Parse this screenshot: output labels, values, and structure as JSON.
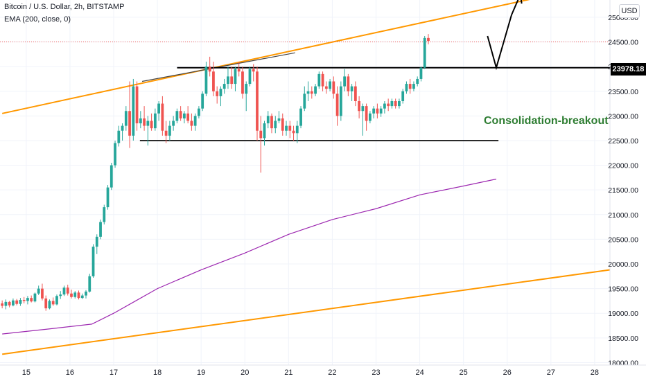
{
  "header": {
    "symbol_line": "Bitcoin / U.S. Dollar, 2h, BITSTAMP",
    "indicator_line": "EMA (200, close, 0)"
  },
  "currency_button": "USD",
  "price_tag": "23978.18",
  "annotation": "Consolidation-breakout",
  "colors": {
    "up": "#26a69a",
    "up_fill": "#26a69a",
    "down": "#ef5350",
    "ema": "#9c27b0",
    "trendline": "#ff9800",
    "level": "#000000",
    "annotation": "#2e7d32",
    "grid": "#f0f3fa"
  },
  "chart_data": {
    "type": "candlestick",
    "symbol": "Bitcoin / U.S. Dollar",
    "interval": "2h",
    "exchange": "BITSTAMP",
    "ylim": [
      17950,
      25350
    ],
    "xlim": [
      14.4,
      28.35
    ],
    "y_ticks": [
      "25000.00",
      "24500.00",
      "24000.00",
      "23500.00",
      "23000.00",
      "22500.00",
      "22000.00",
      "21500.00",
      "21000.00",
      "20500.00",
      "20000.00",
      "19500.00",
      "19000.00",
      "18500.00",
      "18000.00"
    ],
    "x_ticks": [
      "15",
      "16",
      "17",
      "18",
      "19",
      "20",
      "21",
      "22",
      "23",
      "24",
      "25",
      "26",
      "27",
      "28"
    ],
    "candles_start_day": 14.45,
    "candles_step_day": 0.0833,
    "candles": [
      [
        19200,
        19260,
        19100,
        19150
      ],
      [
        19150,
        19280,
        19080,
        19230
      ],
      [
        19230,
        19250,
        19120,
        19160
      ],
      [
        19160,
        19300,
        19140,
        19260
      ],
      [
        19260,
        19290,
        19160,
        19190
      ],
      [
        19190,
        19310,
        19150,
        19270
      ],
      [
        19270,
        19330,
        19200,
        19250
      ],
      [
        19250,
        19350,
        19180,
        19310
      ],
      [
        19310,
        19360,
        19220,
        19240
      ],
      [
        19240,
        19420,
        19220,
        19400
      ],
      [
        19400,
        19560,
        19370,
        19500
      ],
      [
        19500,
        19600,
        19260,
        19300
      ],
      [
        19300,
        19360,
        19050,
        19100
      ],
      [
        19100,
        19280,
        19080,
        19250
      ],
      [
        19250,
        19320,
        19150,
        19180
      ],
      [
        19180,
        19380,
        19160,
        19350
      ],
      [
        19350,
        19450,
        19290,
        19380
      ],
      [
        19380,
        19560,
        19350,
        19520
      ],
      [
        19520,
        19580,
        19360,
        19400
      ],
      [
        19400,
        19480,
        19300,
        19330
      ],
      [
        19330,
        19450,
        19300,
        19420
      ],
      [
        19420,
        19460,
        19280,
        19310
      ],
      [
        19310,
        19400,
        19290,
        19360
      ],
      [
        19360,
        19470,
        19300,
        19440
      ],
      [
        19440,
        19800,
        19420,
        19750
      ],
      [
        19750,
        20400,
        19720,
        20350
      ],
      [
        20350,
        20600,
        20200,
        20550
      ],
      [
        20550,
        20900,
        20500,
        20850
      ],
      [
        20850,
        21200,
        20800,
        21150
      ],
      [
        21150,
        21600,
        21100,
        21550
      ],
      [
        21550,
        22050,
        21500,
        22000
      ],
      [
        22000,
        22500,
        21950,
        22450
      ],
      [
        22450,
        22800,
        22380,
        22700
      ],
      [
        22700,
        22850,
        22500,
        22800
      ],
      [
        22800,
        23200,
        22700,
        23100
      ],
      [
        23100,
        23700,
        22350,
        22600
      ],
      [
        22600,
        23750,
        22500,
        23600
      ],
      [
        23600,
        23700,
        22700,
        22850
      ],
      [
        22850,
        23100,
        22750,
        22950
      ],
      [
        22950,
        23200,
        22700,
        22800
      ],
      [
        22800,
        23000,
        22400,
        22900
      ],
      [
        22900,
        23050,
        22700,
        22750
      ],
      [
        22750,
        23150,
        22700,
        23050
      ],
      [
        23050,
        23300,
        22900,
        23250
      ],
      [
        23250,
        23400,
        22600,
        22700
      ],
      [
        22700,
        22900,
        22450,
        22600
      ],
      [
        22600,
        22900,
        22500,
        22800
      ],
      [
        22800,
        23000,
        22700,
        22900
      ],
      [
        22900,
        23150,
        22850,
        23100
      ],
      [
        23100,
        23200,
        22900,
        22950
      ],
      [
        22950,
        23100,
        22850,
        23050
      ],
      [
        23050,
        23200,
        22850,
        22900
      ],
      [
        22900,
        23050,
        22700,
        22800
      ],
      [
        22800,
        23050,
        22700,
        23000
      ],
      [
        23000,
        23200,
        22950,
        23150
      ],
      [
        23150,
        23500,
        23100,
        23450
      ],
      [
        23450,
        24100,
        23400,
        24000
      ],
      [
        24000,
        24200,
        23800,
        23900
      ],
      [
        23900,
        24100,
        23400,
        23500
      ],
      [
        23500,
        23600,
        23250,
        23400
      ],
      [
        23400,
        23600,
        23200,
        23550
      ],
      [
        23550,
        23750,
        23450,
        23650
      ],
      [
        23650,
        24000,
        23550,
        23800
      ],
      [
        23800,
        24000,
        23550,
        23650
      ],
      [
        23650,
        24000,
        23500,
        23950
      ],
      [
        23950,
        24100,
        23800,
        23900
      ],
      [
        23900,
        24000,
        23350,
        23450
      ],
      [
        23450,
        23700,
        23100,
        23650
      ],
      [
        23650,
        24000,
        23600,
        23950
      ],
      [
        23950,
        24050,
        23700,
        23900
      ],
      [
        23900,
        24000,
        22500,
        22700
      ],
      [
        22700,
        23000,
        21850,
        22550
      ],
      [
        22550,
        22900,
        22400,
        22850
      ],
      [
        22850,
        23100,
        22750,
        23000
      ],
      [
        23000,
        23050,
        22650,
        22750
      ],
      [
        22750,
        23000,
        22650,
        22900
      ],
      [
        22900,
        23100,
        22850,
        22950
      ],
      [
        22950,
        23050,
        22600,
        22700
      ],
      [
        22700,
        22900,
        22600,
        22800
      ],
      [
        22800,
        22900,
        22550,
        22700
      ],
      [
        22700,
        22800,
        22500,
        22650
      ],
      [
        22650,
        22900,
        22450,
        22800
      ],
      [
        22800,
        23200,
        22750,
        23150
      ],
      [
        23150,
        23600,
        23100,
        23450
      ],
      [
        23450,
        23700,
        23300,
        23500
      ],
      [
        23500,
        23600,
        23350,
        23450
      ],
      [
        23450,
        23650,
        23400,
        23600
      ],
      [
        23600,
        23900,
        23550,
        23850
      ],
      [
        23850,
        23900,
        23500,
        23600
      ],
      [
        23600,
        23700,
        23450,
        23550
      ],
      [
        23550,
        23750,
        23500,
        23700
      ],
      [
        23700,
        23800,
        23350,
        23450
      ],
      [
        23450,
        23600,
        22800,
        23000
      ],
      [
        23000,
        23700,
        22900,
        23600
      ],
      [
        23600,
        23950,
        23500,
        23800
      ],
      [
        23800,
        23850,
        23400,
        23500
      ],
      [
        23500,
        23650,
        23300,
        23600
      ],
      [
        23600,
        23700,
        23200,
        23300
      ],
      [
        23300,
        23400,
        22950,
        23100
      ],
      [
        23100,
        23250,
        22600,
        23200
      ],
      [
        23200,
        23250,
        22700,
        22900
      ],
      [
        22900,
        23100,
        22850,
        23050
      ],
      [
        23050,
        23200,
        22950,
        23150
      ],
      [
        23150,
        23250,
        22950,
        23050
      ],
      [
        23050,
        23200,
        22980,
        23150
      ],
      [
        23150,
        23300,
        23050,
        23250
      ],
      [
        23250,
        23350,
        23100,
        23200
      ],
      [
        23200,
        23350,
        23150,
        23300
      ],
      [
        23300,
        23350,
        23150,
        23200
      ],
      [
        23200,
        23350,
        23150,
        23300
      ],
      [
        23300,
        23550,
        23250,
        23500
      ],
      [
        23500,
        23700,
        23450,
        23650
      ],
      [
        23650,
        23750,
        23450,
        23550
      ],
      [
        23550,
        23700,
        23500,
        23650
      ],
      [
        23650,
        23800,
        23600,
        23750
      ],
      [
        23750,
        24000,
        23700,
        23980
      ],
      [
        23980,
        24620,
        23950,
        24580
      ],
      [
        24580,
        24660,
        24450,
        24520
      ]
    ],
    "ema_200": [
      [
        14.45,
        18580
      ],
      [
        15.5,
        18680
      ],
      [
        16.5,
        18780
      ],
      [
        17.0,
        19000
      ],
      [
        17.5,
        19250
      ],
      [
        18.0,
        19500
      ],
      [
        19.0,
        19880
      ],
      [
        20.0,
        20220
      ],
      [
        21.0,
        20600
      ],
      [
        22.0,
        20900
      ],
      [
        23.0,
        21120
      ],
      [
        24.0,
        21400
      ],
      [
        25.0,
        21580
      ],
      [
        25.75,
        21720
      ]
    ],
    "trendlines": [
      {
        "kind": "upper-channel",
        "points": [
          [
            14.45,
            23050
          ],
          [
            26.55,
            25370
          ]
        ]
      },
      {
        "kind": "lower-channel",
        "points": [
          [
            14.45,
            18170
          ],
          [
            28.35,
            19880
          ]
        ]
      },
      {
        "kind": "highs-line",
        "points": [
          [
            17.65,
            23700
          ],
          [
            21.15,
            24280
          ]
        ]
      }
    ],
    "levels": [
      {
        "kind": "resistance",
        "y": 23978.18,
        "from": 18.45,
        "to": 28.35
      },
      {
        "kind": "support",
        "y": 22500,
        "from": 17.6,
        "to": 25.8
      }
    ],
    "last_price": 24500,
    "projection": [
      [
        25.55,
        24620
      ],
      [
        25.75,
        23978
      ],
      [
        26.1,
        25050
      ],
      [
        26.3,
        25460
      ]
    ]
  }
}
